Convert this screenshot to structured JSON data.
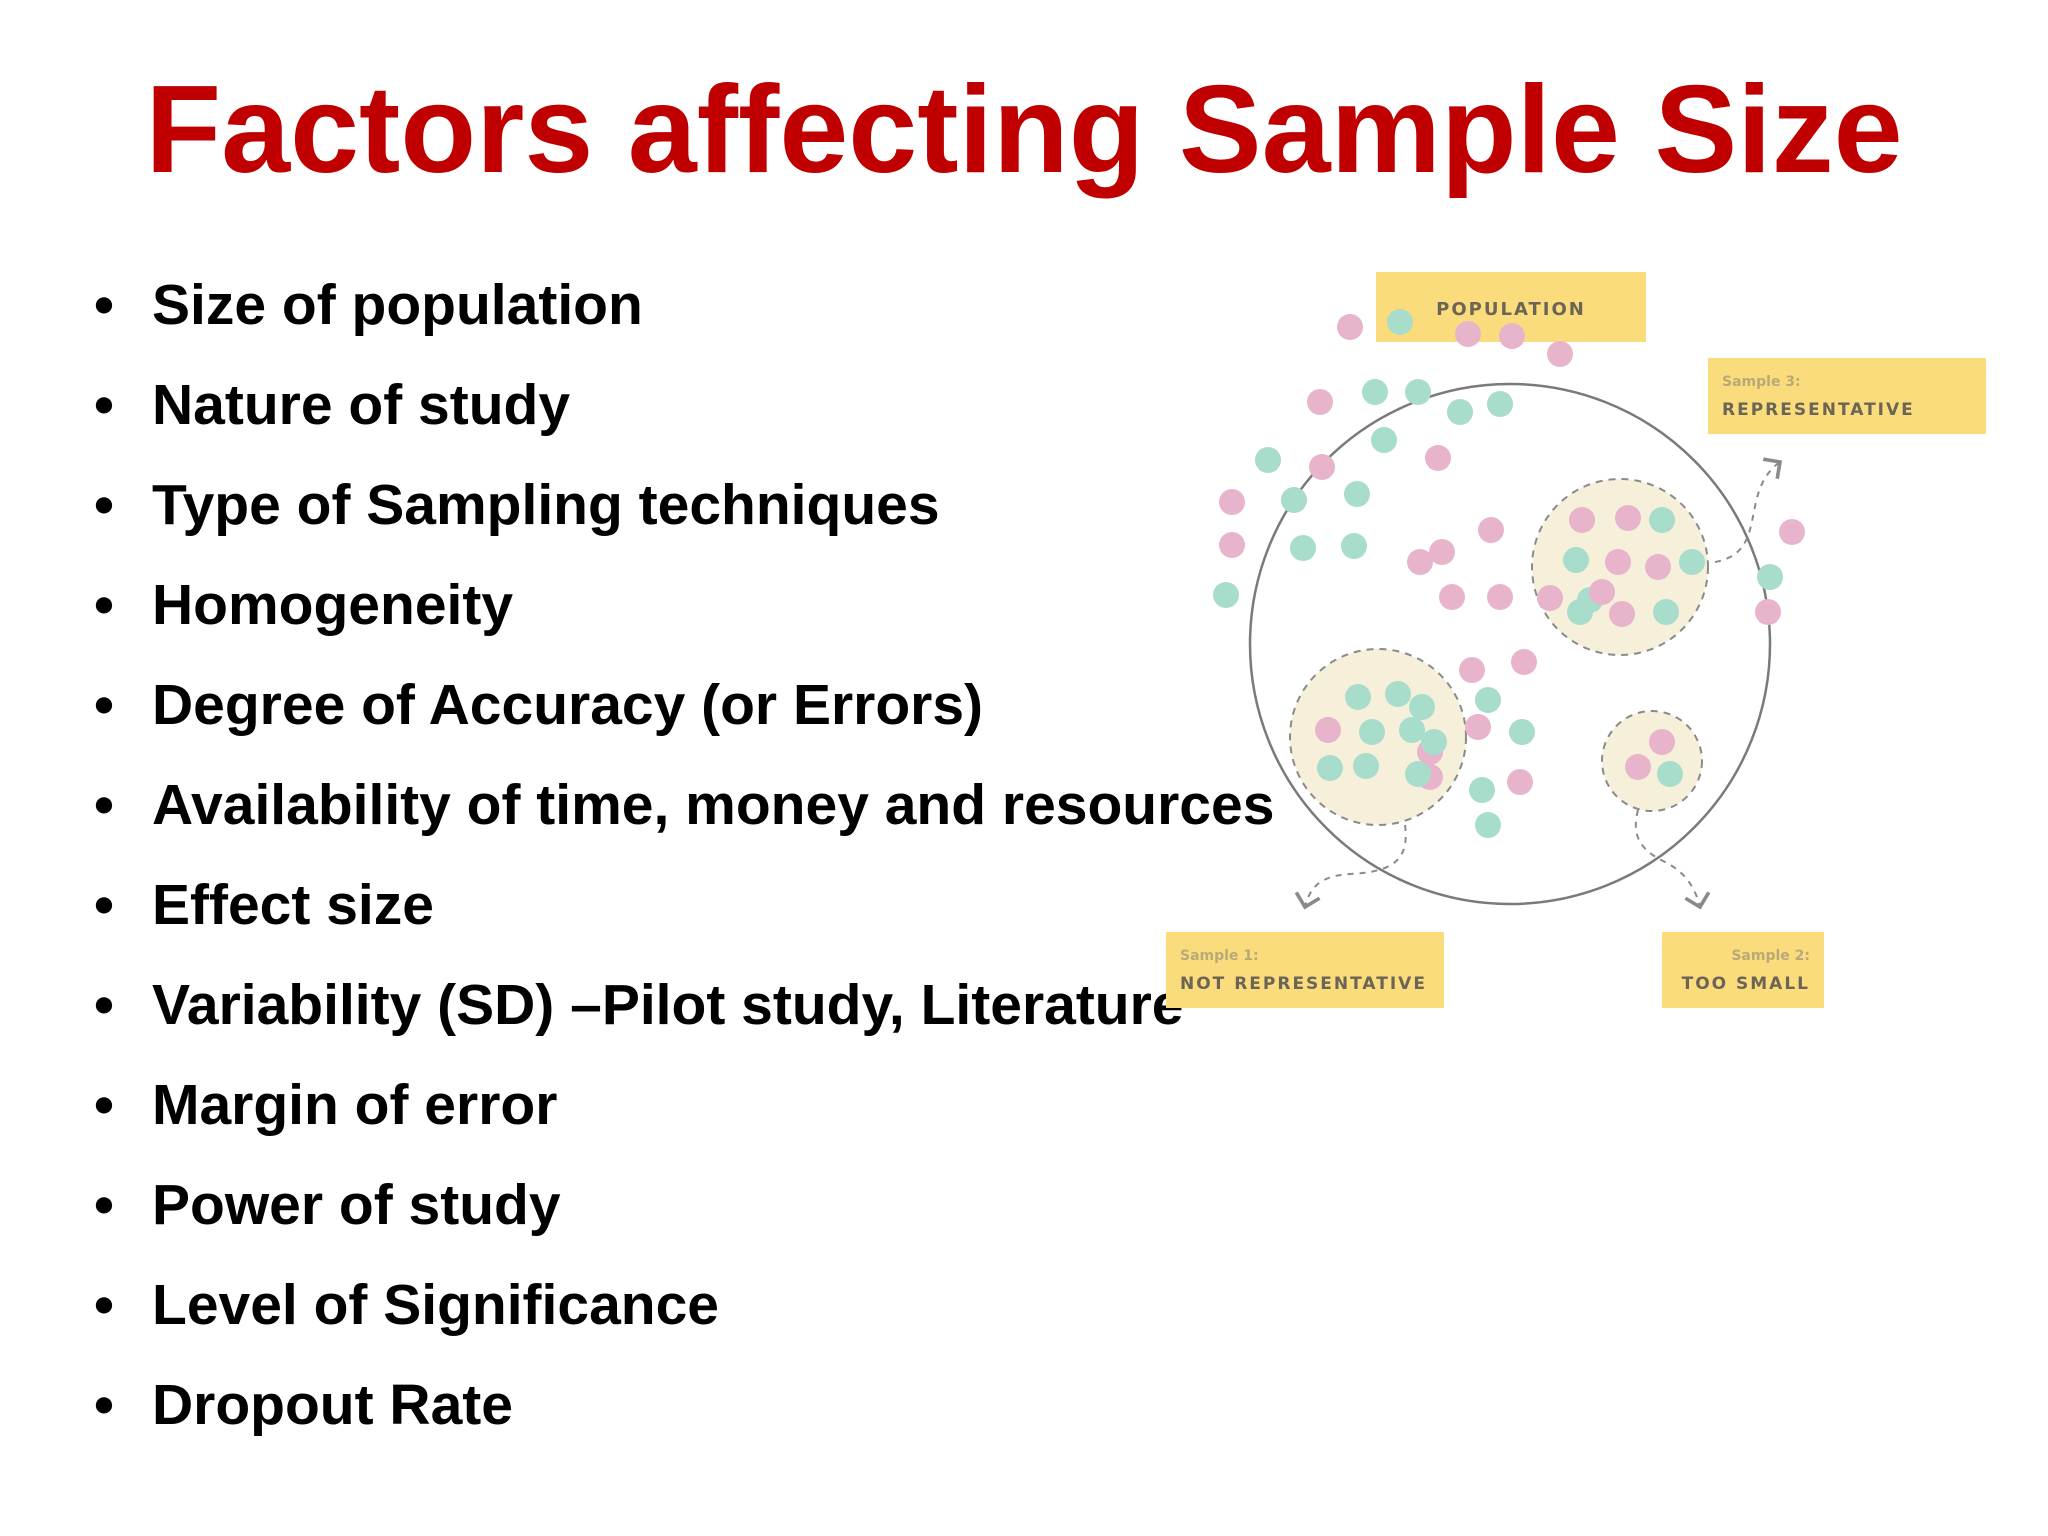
{
  "title": "Factors affecting Sample Size",
  "bullets": [
    "Size of population",
    "Nature of study",
    "Type of Sampling techniques",
    "Homogeneity",
    "Degree of Accuracy (or Errors)",
    "Availability of time, money and resources",
    "Effect size",
    "Variability (SD) –Pilot study, Literature",
    "Margin of error",
    "Power of study",
    "Level of Significance",
    "Dropout Rate"
  ],
  "bullet_glyph": "•",
  "diagram": {
    "population_label": "POPULATION",
    "sample1": {
      "caption": "Sample 1:",
      "label": "NOT REPRESENTATIVE"
    },
    "sample2": {
      "caption": "Sample 2:",
      "label": "TOO SMALL"
    },
    "sample3": {
      "caption": "Sample 3:",
      "label": "REPRESENTATIVE"
    },
    "colors": {
      "label_box": "#fbdc7c",
      "pink_dot": "#e8b4cc",
      "teal_dot": "#a8dccb",
      "sample_fill": "#f6efda"
    }
  }
}
